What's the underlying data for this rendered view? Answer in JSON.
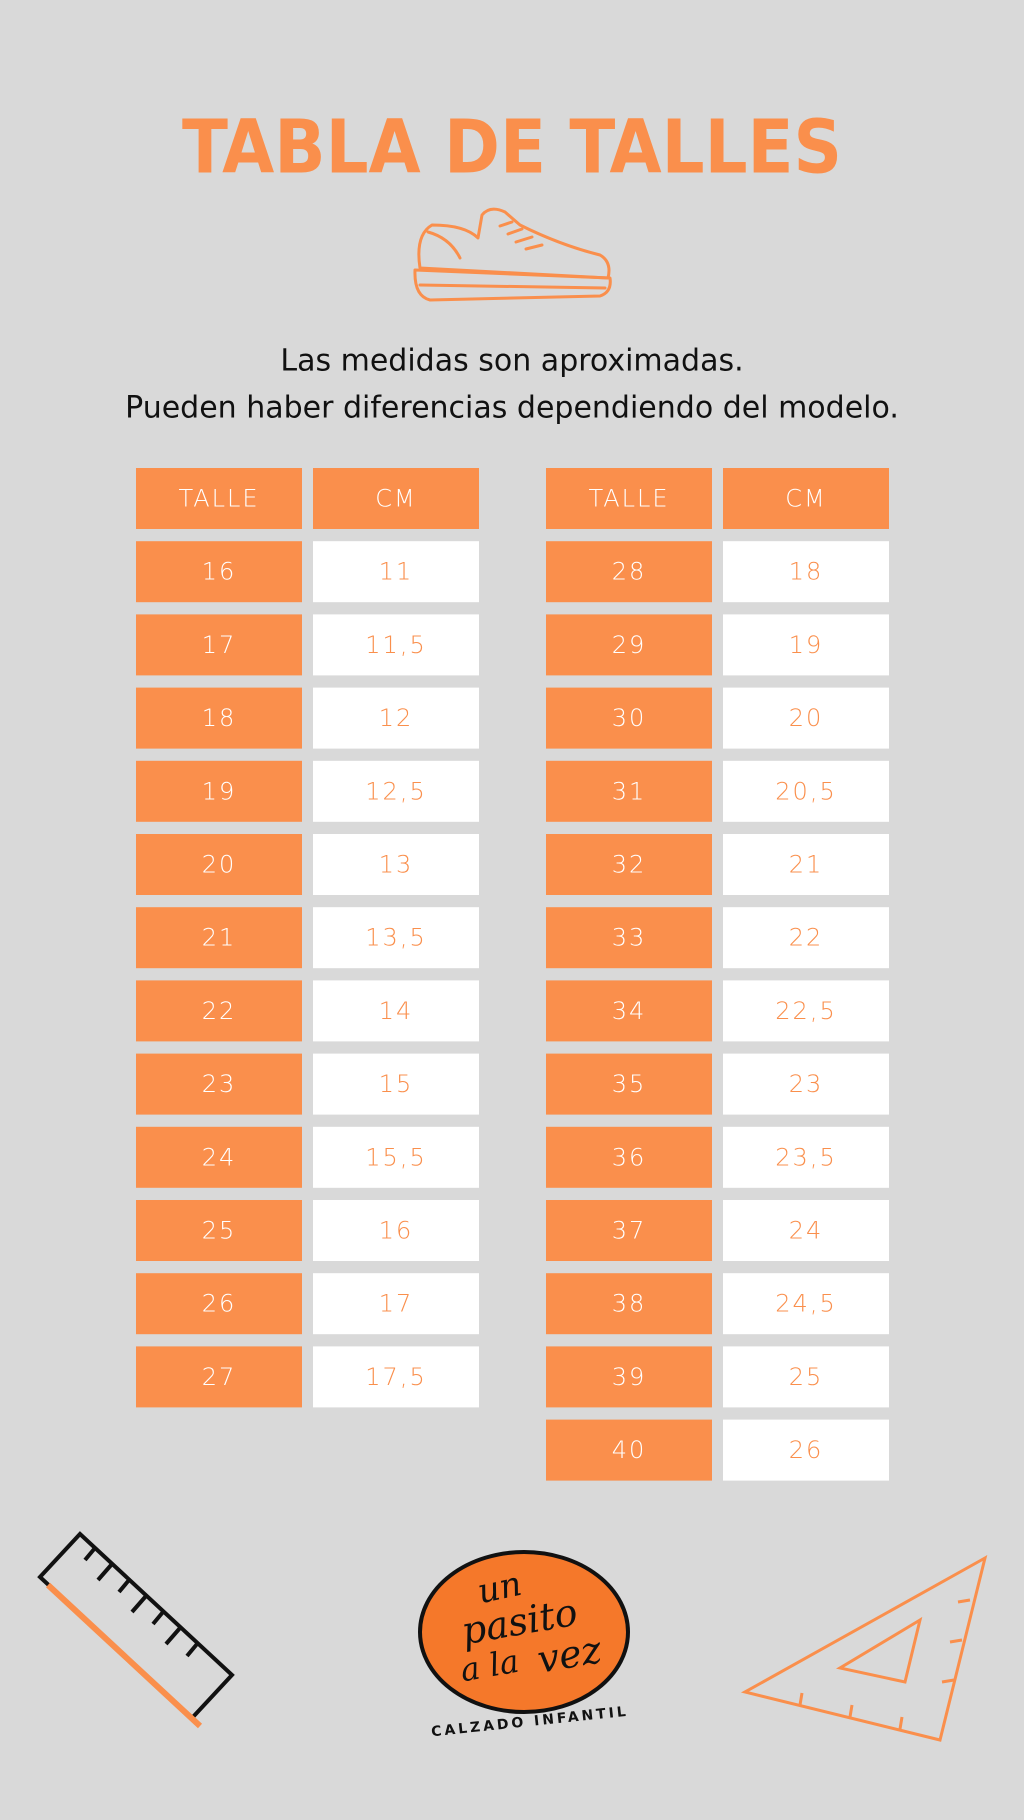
{
  "header": {
    "title": "TABLA DE TALLES",
    "subtitle": [
      "Las medidas son aproximadas.",
      "Pueden haber diferencias dependiendo del modelo."
    ]
  },
  "tables": [
    {
      "columns": [
        "TALLE",
        "CM"
      ],
      "rows": [
        [
          "16",
          "11"
        ],
        [
          "17",
          "11,5"
        ],
        [
          "18",
          "12"
        ],
        [
          "19",
          "12,5"
        ],
        [
          "20",
          "13"
        ],
        [
          "21",
          "13,5"
        ],
        [
          "22",
          "14"
        ],
        [
          "23",
          "15"
        ],
        [
          "24",
          "15,5"
        ],
        [
          "25",
          "16"
        ],
        [
          "26",
          "17"
        ],
        [
          "27",
          "17,5"
        ]
      ]
    },
    {
      "columns": [
        "TALLE",
        "CM"
      ],
      "rows": [
        [
          "28",
          "18"
        ],
        [
          "29",
          "19"
        ],
        [
          "30",
          "20"
        ],
        [
          "31",
          "20,5"
        ],
        [
          "32",
          "21"
        ],
        [
          "33",
          "22"
        ],
        [
          "34",
          "22,5"
        ],
        [
          "35",
          "23"
        ],
        [
          "36",
          "23,5"
        ],
        [
          "37",
          "24"
        ],
        [
          "38",
          "24,5"
        ],
        [
          "39",
          "25"
        ],
        [
          "40",
          "26"
        ]
      ]
    }
  ],
  "logo": {
    "lines": [
      "un",
      "pasito",
      "a la",
      "vez"
    ],
    "tagline": "CALZADO INFANTIL"
  }
}
